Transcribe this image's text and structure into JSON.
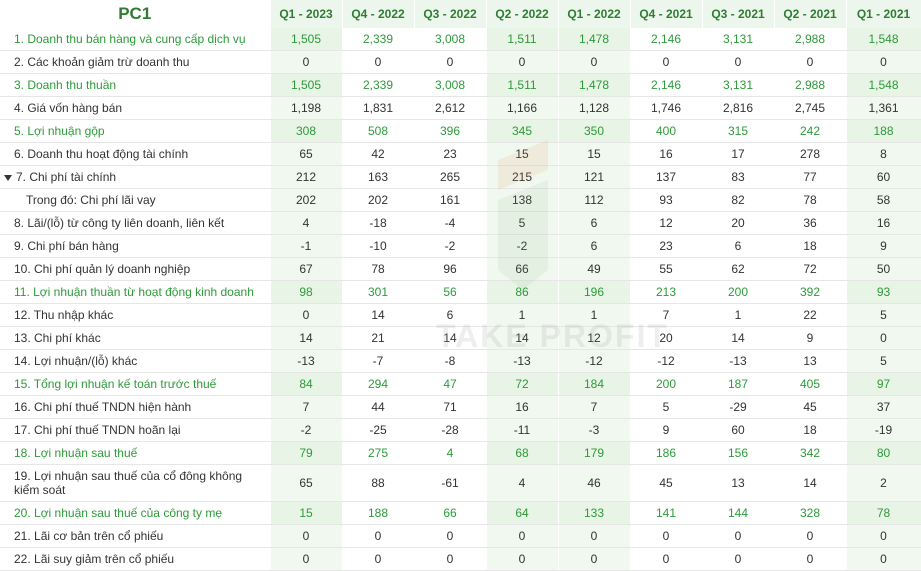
{
  "table": {
    "ticker": "PC1",
    "periods": [
      "Q1 - 2023",
      "Q4 - 2022",
      "Q3 - 2022",
      "Q2 - 2022",
      "Q1 - 2022",
      "Q4 - 2021",
      "Q3 - 2021",
      "Q2 - 2021",
      "Q1 - 2021"
    ],
    "rows": [
      {
        "label": "1. Doanh thu bán hàng và cung cấp dịch vụ",
        "values": [
          "1,505",
          "2,339",
          "3,008",
          "1,511",
          "1,478",
          "2,146",
          "3,131",
          "2,988",
          "1,548"
        ],
        "green": true
      },
      {
        "label": "2. Các khoản giảm trừ doanh thu",
        "values": [
          "0",
          "0",
          "0",
          "0",
          "0",
          "0",
          "0",
          "0",
          "0"
        ]
      },
      {
        "label": "3. Doanh thu thuần",
        "values": [
          "1,505",
          "2,339",
          "3,008",
          "1,511",
          "1,478",
          "2,146",
          "3,131",
          "2,988",
          "1,548"
        ],
        "green": true
      },
      {
        "label": "4. Giá vốn hàng bán",
        "values": [
          "1,198",
          "1,831",
          "2,612",
          "1,166",
          "1,128",
          "1,746",
          "2,816",
          "2,745",
          "1,361"
        ]
      },
      {
        "label": "5. Lợi nhuận gộp",
        "values": [
          "308",
          "508",
          "396",
          "345",
          "350",
          "400",
          "315",
          "242",
          "188"
        ],
        "green": true
      },
      {
        "label": "6. Doanh thu hoạt động tài chính",
        "values": [
          "65",
          "42",
          "23",
          "15",
          "15",
          "16",
          "17",
          "278",
          "8"
        ]
      },
      {
        "label": "7. Chi phí tài chính",
        "values": [
          "212",
          "163",
          "265",
          "215",
          "121",
          "137",
          "83",
          "77",
          "60"
        ],
        "expanded": true
      },
      {
        "label": "Trong đó: Chi phí lãi vay",
        "values": [
          "202",
          "202",
          "161",
          "138",
          "112",
          "93",
          "82",
          "78",
          "58"
        ],
        "sub": true
      },
      {
        "label": "8. Lãi/(lỗ) từ công ty liên doanh, liên kết",
        "values": [
          "4",
          "-18",
          "-4",
          "5",
          "6",
          "12",
          "20",
          "36",
          "16"
        ]
      },
      {
        "label": "9. Chi phí bán hàng",
        "values": [
          "-1",
          "-10",
          "-2",
          "-2",
          "6",
          "23",
          "6",
          "18",
          "9"
        ]
      },
      {
        "label": "10. Chi phí quản lý doanh nghiệp",
        "values": [
          "67",
          "78",
          "96",
          "66",
          "49",
          "55",
          "62",
          "72",
          "50"
        ]
      },
      {
        "label": "11. Lợi nhuận thuần từ hoạt động kinh doanh",
        "values": [
          "98",
          "301",
          "56",
          "86",
          "196",
          "213",
          "200",
          "392",
          "93"
        ],
        "green": true
      },
      {
        "label": "12. Thu nhập khác",
        "values": [
          "0",
          "14",
          "6",
          "1",
          "1",
          "7",
          "1",
          "22",
          "5"
        ]
      },
      {
        "label": "13. Chi phí khác",
        "values": [
          "14",
          "21",
          "14",
          "14",
          "12",
          "20",
          "14",
          "9",
          "0"
        ]
      },
      {
        "label": "14. Lợi nhuận/(lỗ) khác",
        "values": [
          "-13",
          "-7",
          "-8",
          "-13",
          "-12",
          "-12",
          "-13",
          "13",
          "5"
        ]
      },
      {
        "label": "15. Tổng lợi nhuận kế toán trước thuế",
        "values": [
          "84",
          "294",
          "47",
          "72",
          "184",
          "200",
          "187",
          "405",
          "97"
        ],
        "green": true
      },
      {
        "label": "16. Chi phí thuế TNDN hiện hành",
        "values": [
          "7",
          "44",
          "71",
          "16",
          "7",
          "5",
          "-29",
          "45",
          "37"
        ]
      },
      {
        "label": "17. Chi phí thuế TNDN hoãn lại",
        "values": [
          "-2",
          "-25",
          "-28",
          "-11",
          "-3",
          "9",
          "60",
          "18",
          "-19"
        ]
      },
      {
        "label": "18. Lợi nhuận sau thuế",
        "values": [
          "79",
          "275",
          "4",
          "68",
          "179",
          "186",
          "156",
          "342",
          "80"
        ],
        "green": true
      },
      {
        "label": "19. Lợi nhuận sau thuế của cổ đông không kiểm soát",
        "values": [
          "65",
          "88",
          "-61",
          "4",
          "46",
          "45",
          "13",
          "14",
          "2"
        ],
        "tall": true
      },
      {
        "label": "20. Lợi nhuận sau thuế của công ty mẹ",
        "values": [
          "15",
          "188",
          "66",
          "64",
          "133",
          "141",
          "144",
          "328",
          "78"
        ],
        "green": true
      },
      {
        "label": "21. Lãi cơ bản trên cổ phiếu",
        "values": [
          "0",
          "0",
          "0",
          "0",
          "0",
          "0",
          "0",
          "0",
          "0"
        ]
      },
      {
        "label": "22. Lãi suy giảm trên cổ phiếu",
        "values": [
          "0",
          "0",
          "0",
          "0",
          "0",
          "0",
          "0",
          "0",
          "0"
        ]
      }
    ]
  },
  "watermark": "TAKE PROFIT",
  "colors": {
    "accent": "#2e7d32",
    "green_text": "#2e9a3a",
    "shade": "#f1f8ef"
  }
}
